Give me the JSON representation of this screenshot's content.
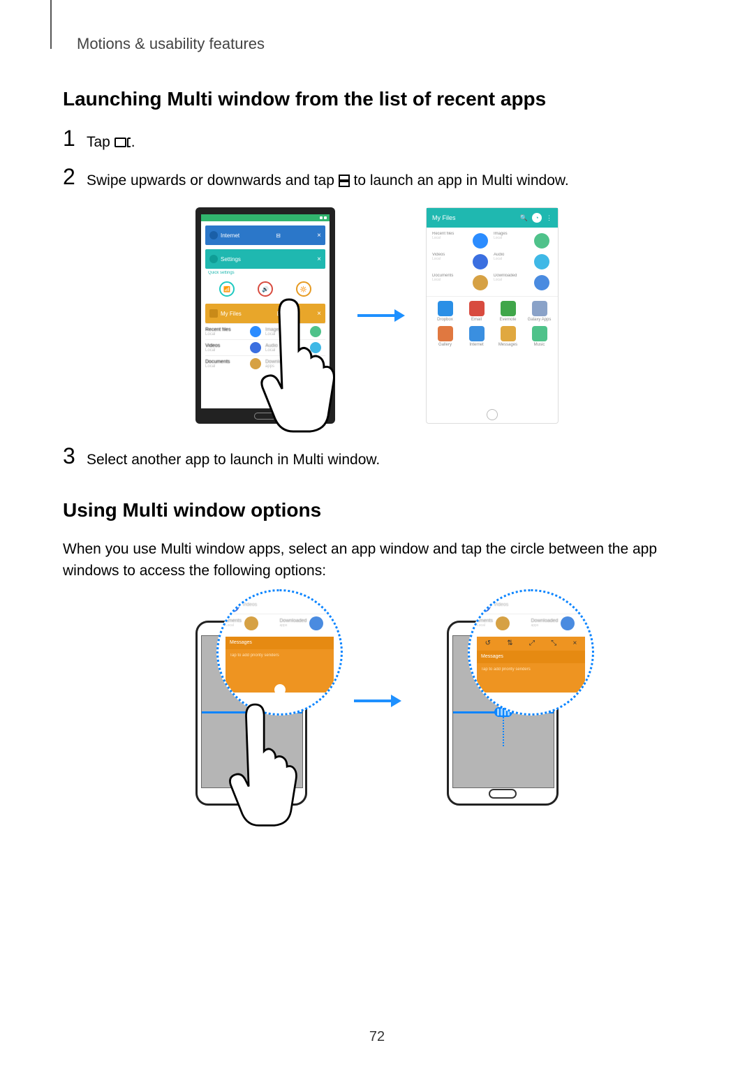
{
  "page": {
    "chapter": "Motions & usability features",
    "number": "72"
  },
  "section1": {
    "heading": "Launching Multi window from the list of recent apps",
    "step1_pre": "Tap ",
    "step1_post": ".",
    "step2_pre": "Swipe upwards or downwards and tap ",
    "step2_post": " to launch an app in Multi window.",
    "step3": "Select another app to launch in Multi window."
  },
  "section2": {
    "heading": "Using Multi window options",
    "body": "When you use Multi window apps, select an app window and tap the circle between the app windows to access the following options:"
  },
  "figure1": {
    "arrow_color": "#1e90ff",
    "left_phone": {
      "statusbar_color": "#31b56e",
      "card_internet": {
        "bg": "#2b77c9",
        "label": "Internet"
      },
      "card_settings": {
        "bg": "#1fb8b0",
        "label": "Settings"
      },
      "icons_row": [
        {
          "color": "#1ec9c0"
        },
        {
          "color": "#d84b3f"
        },
        {
          "color": "#e69a21"
        }
      ],
      "card_myfiles": {
        "bg": "#e8a62a",
        "label": "My Files"
      },
      "files": [
        {
          "a": "Recent files",
          "ic": "#2b8cff",
          "b": "Images",
          "ic2": "#4fc28a"
        },
        {
          "a": "Videos",
          "ic": "#3b6fe0",
          "b": "Audio",
          "ic2": "#3fb8e6"
        },
        {
          "a": "Documents",
          "ic": "#d6a144",
          "b": "Downloaded",
          "ic2": "#e0e0e0"
        }
      ]
    },
    "right_panel": {
      "header_color": "#1fb8b0",
      "header_label": "My Files",
      "grid": [
        {
          "t": "Recent files",
          "c": "#2b8cff",
          "t2": "Images",
          "c2": "#4fc28a"
        },
        {
          "t": "Videos",
          "c": "#3b6fe0",
          "t2": "Audio",
          "c2": "#3fb8e6"
        },
        {
          "t": "Documents",
          "c": "#d6a144",
          "t2": "Downloaded",
          "c2": "#4a8be0"
        }
      ],
      "apps_row1": [
        {
          "name": "Dropbox",
          "c": "#2a8fe6"
        },
        {
          "name": "Email",
          "c": "#d84b3f"
        },
        {
          "name": "Evernote",
          "c": "#40a64a"
        },
        {
          "name": "Galaxy Apps",
          "c": "#8aa2c8"
        }
      ],
      "apps_row2": [
        {
          "name": "Gallery",
          "c": "#e07840"
        },
        {
          "name": "Internet",
          "c": "#3a8fe0"
        },
        {
          "name": "Messages",
          "c": "#e0a840"
        },
        {
          "name": "Music",
          "c": "#4fc28a"
        }
      ]
    }
  },
  "figure2": {
    "arrow_color": "#1e90ff",
    "bubble_border": "#1e90ff",
    "divider_color": "#0a84ff",
    "bubble_rows": [
      {
        "a": "",
        "ic": "#3b6fe0"
      },
      {
        "a": "uments",
        "ic": "#d6a144",
        "b": "Downloaded",
        "ic2": "#4a8be0"
      }
    ],
    "orange_color": "#ee9421",
    "orange_header": "Messages",
    "orange_body": "Tap to add priority senders",
    "option_icons": [
      "↺",
      "⇅",
      "⤢",
      "⤡",
      "×"
    ]
  },
  "colors": {
    "text": "#000000",
    "muted": "#444444"
  }
}
